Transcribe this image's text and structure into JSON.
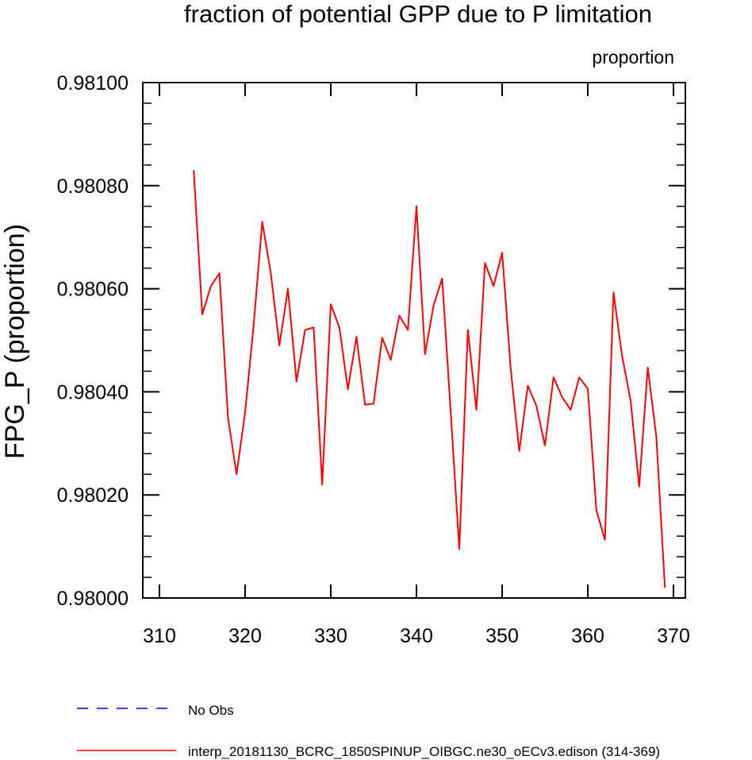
{
  "chart_data": {
    "type": "line",
    "title": "fraction of potential GPP due to P limitation",
    "units_label": "proportion",
    "xlabel": "",
    "ylabel": "FPG_P  (proportion)",
    "xlim": [
      310,
      370
    ],
    "ylim": [
      0.98,
      0.981
    ],
    "xticks": [
      310,
      320,
      330,
      340,
      350,
      360,
      370
    ],
    "xtick_labels": [
      "310",
      "320",
      "330",
      "340",
      "350",
      "360",
      "370"
    ],
    "yticks": [
      0.98,
      0.9802,
      0.9804,
      0.9806,
      0.9808,
      0.981
    ],
    "ytick_labels": [
      "0.98000",
      "0.98020",
      "0.98040",
      "0.98060",
      "0.98080",
      "0.98100"
    ],
    "grid": false,
    "legend_position": "bottom-left",
    "series": [
      {
        "name": "No Obs",
        "color": "#0000ff",
        "style": "dashed",
        "x": [],
        "values": []
      },
      {
        "name": "interp_20181130_BCRC_1850SPINUP_OIBGC.ne30_oECv3.edison (314-369)",
        "color": "#ff0000",
        "style": "solid",
        "x": [
          314,
          315,
          316,
          317,
          318,
          319,
          320,
          321,
          322,
          323,
          324,
          325,
          326,
          327,
          328,
          329,
          330,
          331,
          332,
          333,
          334,
          335,
          336,
          337,
          338,
          339,
          340,
          341,
          342,
          343,
          344,
          345,
          346,
          347,
          348,
          349,
          350,
          351,
          352,
          353,
          354,
          355,
          356,
          357,
          358,
          359,
          360,
          361,
          362,
          363,
          364,
          365,
          366,
          367,
          368,
          369
        ],
        "values": [
          0.98083,
          0.98055,
          0.980605,
          0.98063,
          0.98035,
          0.98024,
          0.98036,
          0.98053,
          0.98073,
          0.98063,
          0.98049,
          0.9806,
          0.98042,
          0.98052,
          0.980525,
          0.98022,
          0.98057,
          0.980525,
          0.980405,
          0.980507,
          0.980375,
          0.980377,
          0.980505,
          0.980462,
          0.980548,
          0.98052,
          0.98076,
          0.980473,
          0.980568,
          0.98062,
          0.98036,
          0.980095,
          0.98052,
          0.980365,
          0.98065,
          0.980605,
          0.98067,
          0.980445,
          0.980285,
          0.980412,
          0.980373,
          0.980296,
          0.980428,
          0.98039,
          0.980365,
          0.980428,
          0.980406,
          0.98017,
          0.980113,
          0.980593,
          0.98047,
          0.980383,
          0.980216,
          0.980447,
          0.980313,
          0.98002
        ]
      }
    ]
  }
}
